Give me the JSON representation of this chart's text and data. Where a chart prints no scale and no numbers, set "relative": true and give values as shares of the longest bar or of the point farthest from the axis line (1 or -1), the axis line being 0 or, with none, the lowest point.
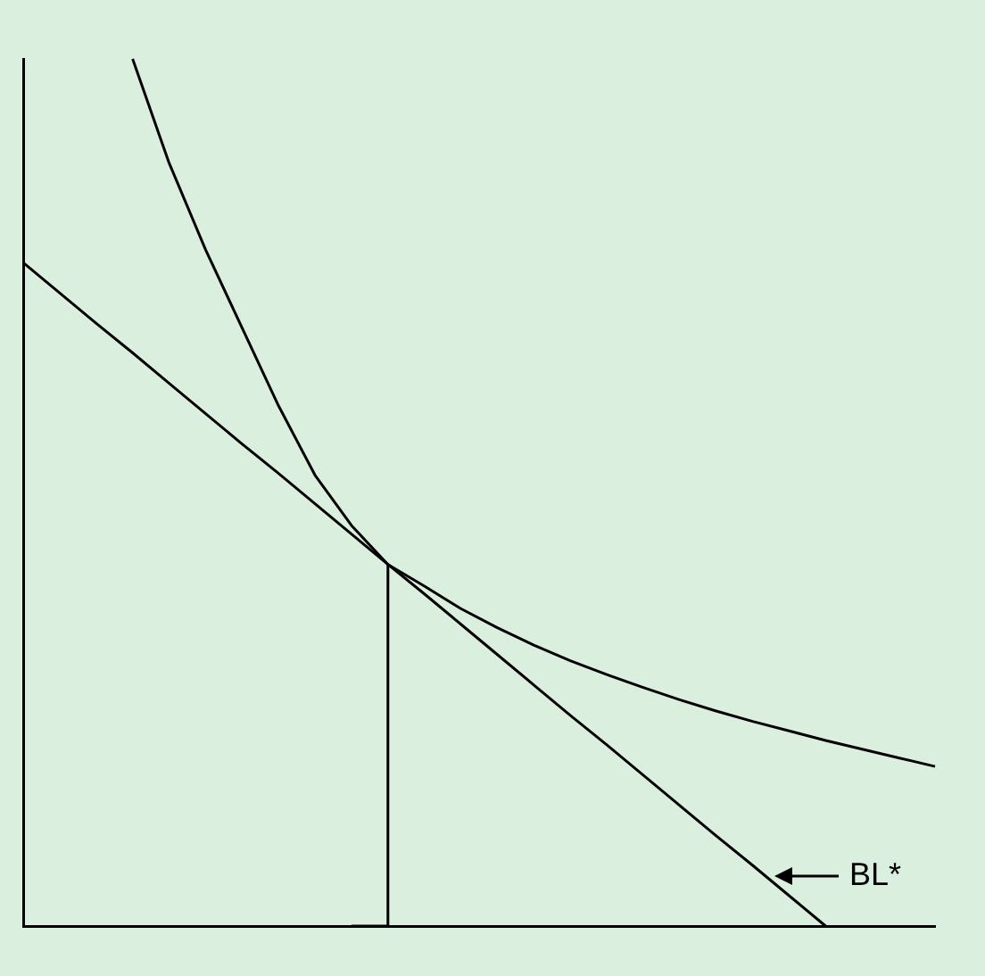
{
  "chart_data": {
    "type": "line",
    "relative": true,
    "legend": false,
    "grid": false,
    "marker": "none",
    "line_style": "solid",
    "annotations": [
      "BL*"
    ],
    "categories": [
      null,
      null,
      null,
      null,
      null,
      null,
      null,
      null,
      null,
      null,
      null,
      null,
      null,
      null,
      null,
      null,
      null,
      null,
      null,
      null,
      null,
      null,
      null,
      null,
      null,
      null
    ],
    "series": [
      {
        "color": "#000000",
        "values": [
          null,
          null,
          null,
          1.0,
          0.88,
          0.78,
          0.69,
          0.6,
          0.52,
          0.462,
          0.417,
          0.392,
          0.366,
          0.344,
          0.324,
          0.306,
          0.29,
          0.275,
          0.261,
          0.248,
          0.236,
          0.225,
          0.214,
          0.204,
          0.194,
          0.184
        ]
      },
      {
        "color": "#000000",
        "values": [
          0.765,
          0.73,
          0.695,
          0.661,
          0.626,
          0.591,
          0.556,
          0.522,
          0.487,
          0.452,
          0.417,
          0.383,
          0.348,
          0.313,
          0.278,
          0.243,
          0.209,
          0.174,
          0.139,
          0.104,
          0.07,
          0.035,
          0,
          null,
          null,
          null
        ]
      },
      {
        "type": "step",
        "color": "#000000",
        "values": [
          null,
          null,
          null,
          null,
          null,
          null,
          null,
          null,
          null,
          0,
          0.417,
          null,
          null,
          null,
          null,
          null,
          null,
          null,
          null,
          null,
          null,
          null,
          null,
          null,
          null,
          null
        ]
      }
    ]
  }
}
